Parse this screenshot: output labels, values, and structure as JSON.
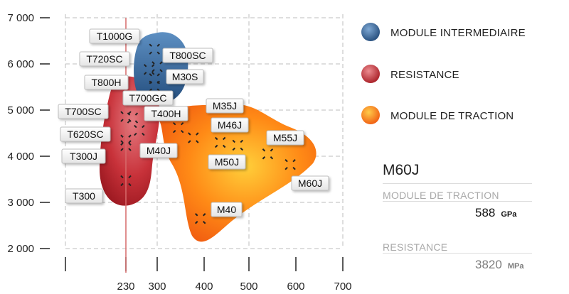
{
  "chart_data": {
    "type": "scatter",
    "y_ticks": [
      "2 000",
      "3 000",
      "4 000",
      "5 000",
      "6 000",
      "7 000"
    ],
    "ylim": [
      2000,
      7000
    ],
    "x_ticks": [
      "230",
      "300",
      "400",
      "500",
      "600",
      "700"
    ],
    "xlim": [
      120,
      720
    ],
    "reference_line_x": 230,
    "grid": true,
    "legend_placement": "right",
    "series": [
      {
        "name": "MODULE INTERMEDIAIRE",
        "color": "#3a6fa6",
        "points": [
          {
            "label": "T1000G",
            "x": 294,
            "y": 6320
          },
          {
            "label": "T720SC",
            "x": 282,
            "y": 5880
          },
          {
            "label": "T800SC",
            "x": 300,
            "y": 5940
          },
          {
            "label": "T800H",
            "x": 294,
            "y": 5680
          },
          {
            "label": "M30S",
            "x": 294,
            "y": 5520
          }
        ]
      },
      {
        "name": "RESISTANCE",
        "color": "#c3262c",
        "points": [
          {
            "label": "T700SC",
            "x": 230,
            "y": 4860
          },
          {
            "label": "T700GC",
            "x": 245,
            "y": 4830
          },
          {
            "label": "T620SC",
            "x": 260,
            "y": 4560
          },
          {
            "label": "T300J",
            "x": 230,
            "y": 4230
          },
          {
            "label": "T400H",
            "x": 230,
            "y": 4350
          },
          {
            "label": "T300",
            "x": 230,
            "y": 3470
          }
        ]
      },
      {
        "name": "MODULE DE TRACTION",
        "color": "#f26c12",
        "points": [
          {
            "label": "M35J",
            "x": 345,
            "y": 4620
          },
          {
            "label": "M40J",
            "x": 377,
            "y": 4400
          },
          {
            "label": "M46J",
            "x": 436,
            "y": 4300
          },
          {
            "label": "M50J",
            "x": 475,
            "y": 4240
          },
          {
            "label": "M55J",
            "x": 540,
            "y": 4050
          },
          {
            "label": "M60J",
            "x": 588,
            "y": 3820
          },
          {
            "label": "M40",
            "x": 392,
            "y": 2650
          }
        ]
      }
    ]
  },
  "info_panel": {
    "title": "M60J",
    "traction_label": "MODULE DE TRACTION",
    "traction_value": "588",
    "traction_unit": "GPa",
    "resistance_label": "RESISTANCE",
    "resistance_value": "3820",
    "resistance_unit": "MPa"
  }
}
